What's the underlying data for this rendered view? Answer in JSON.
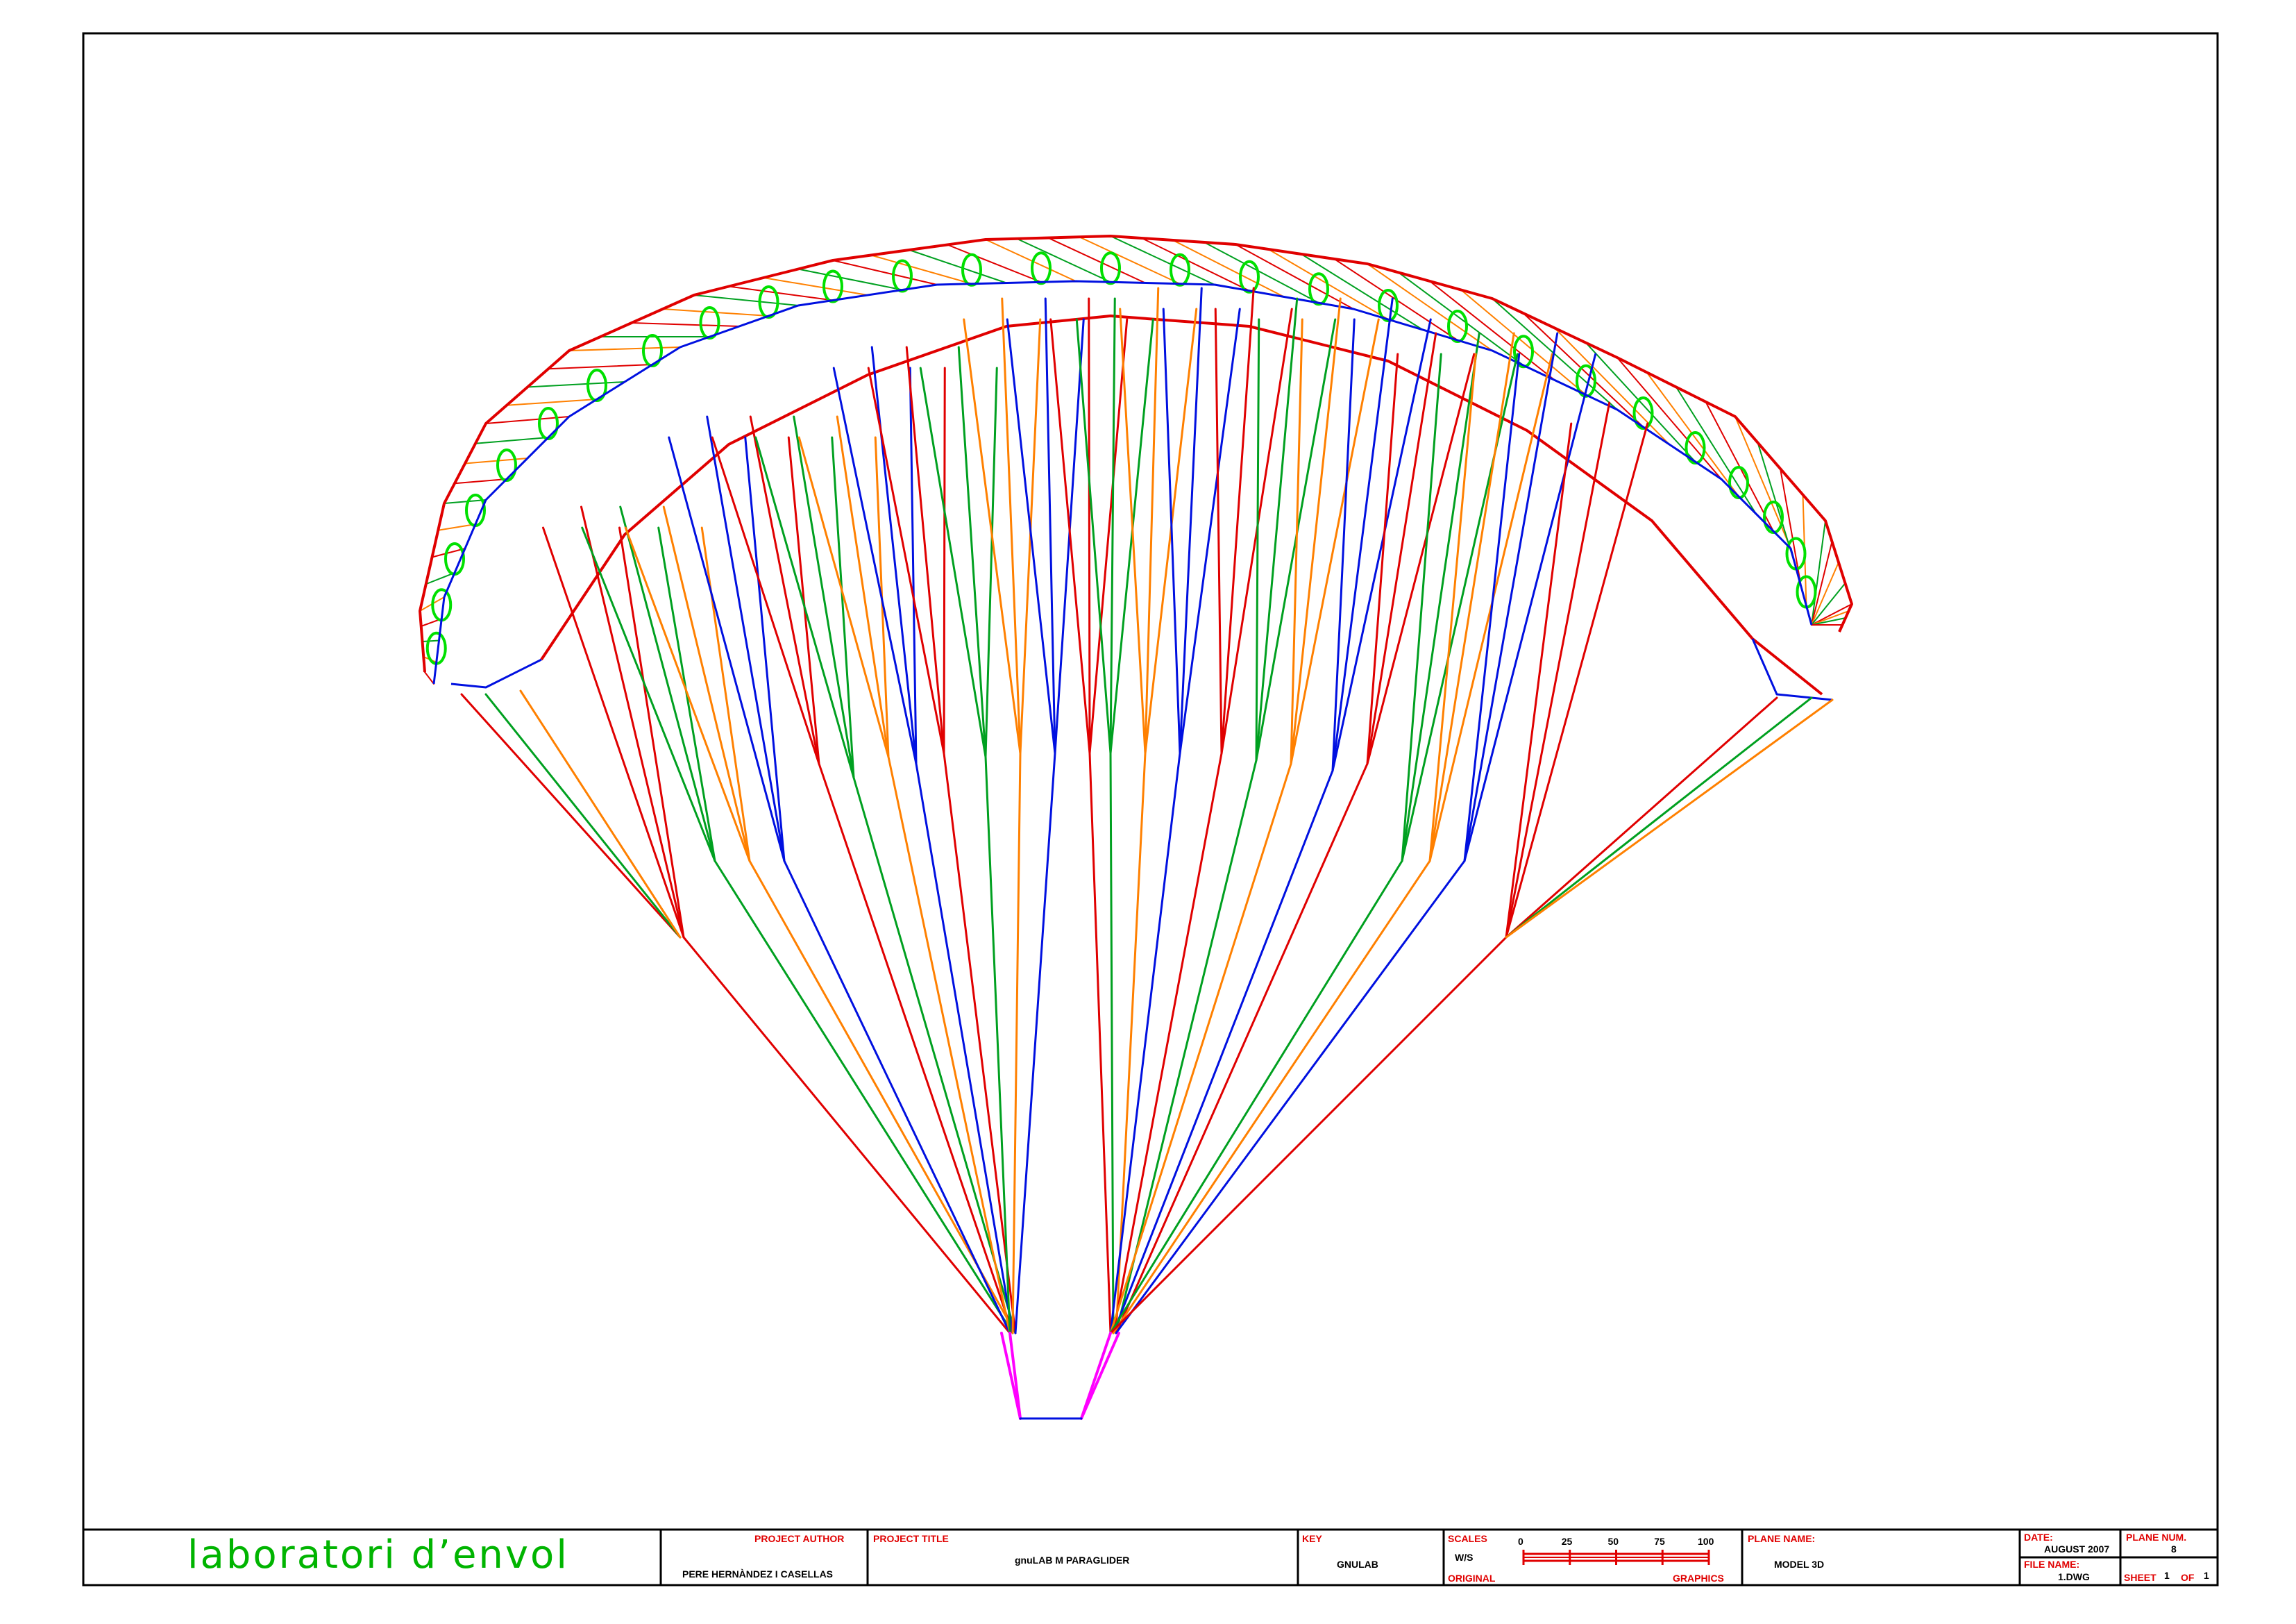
{
  "drawing": {
    "subject": "gnuLAB M PARAGLIDER",
    "colors": {
      "frame": "#000000",
      "accent": "#e00000",
      "line_red": "#e00000",
      "line_green": "#00a020",
      "line_orange": "#ff8000",
      "line_blue": "#0010e0",
      "risers": "#ff00ff",
      "profiles": "#00e000",
      "brand": "#00b400"
    }
  },
  "title_block": {
    "brand": "laboratori d’envol",
    "project_author": {
      "label": "PROJECT AUTHOR",
      "value": "PERE HERNÀNDEZ I CASELLAS"
    },
    "project_title": {
      "label": "PROJECT TITLE",
      "value": "gnuLAB M PARAGLIDER"
    },
    "key": {
      "label": "KEY",
      "value": "GNULAB"
    },
    "scales": {
      "label": "SCALES",
      "value": "W/S",
      "original_label": "ORIGINAL",
      "graphics_label": "GRAPHICS",
      "ticks": [
        "0",
        "25",
        "50",
        "75",
        "100"
      ]
    },
    "plane_name": {
      "label": "PLANE NAME:",
      "value": "MODEL 3D"
    },
    "date": {
      "label": "DATE:",
      "value": "AUGUST 2007"
    },
    "file_name": {
      "label": "FILE NAME:",
      "value": "1.DWG"
    },
    "plane_num": {
      "label": "PLANE NUM.",
      "value": "8"
    },
    "sheet": {
      "label": "SHEET",
      "current": "1",
      "of_label": "OF",
      "total": "1"
    }
  }
}
